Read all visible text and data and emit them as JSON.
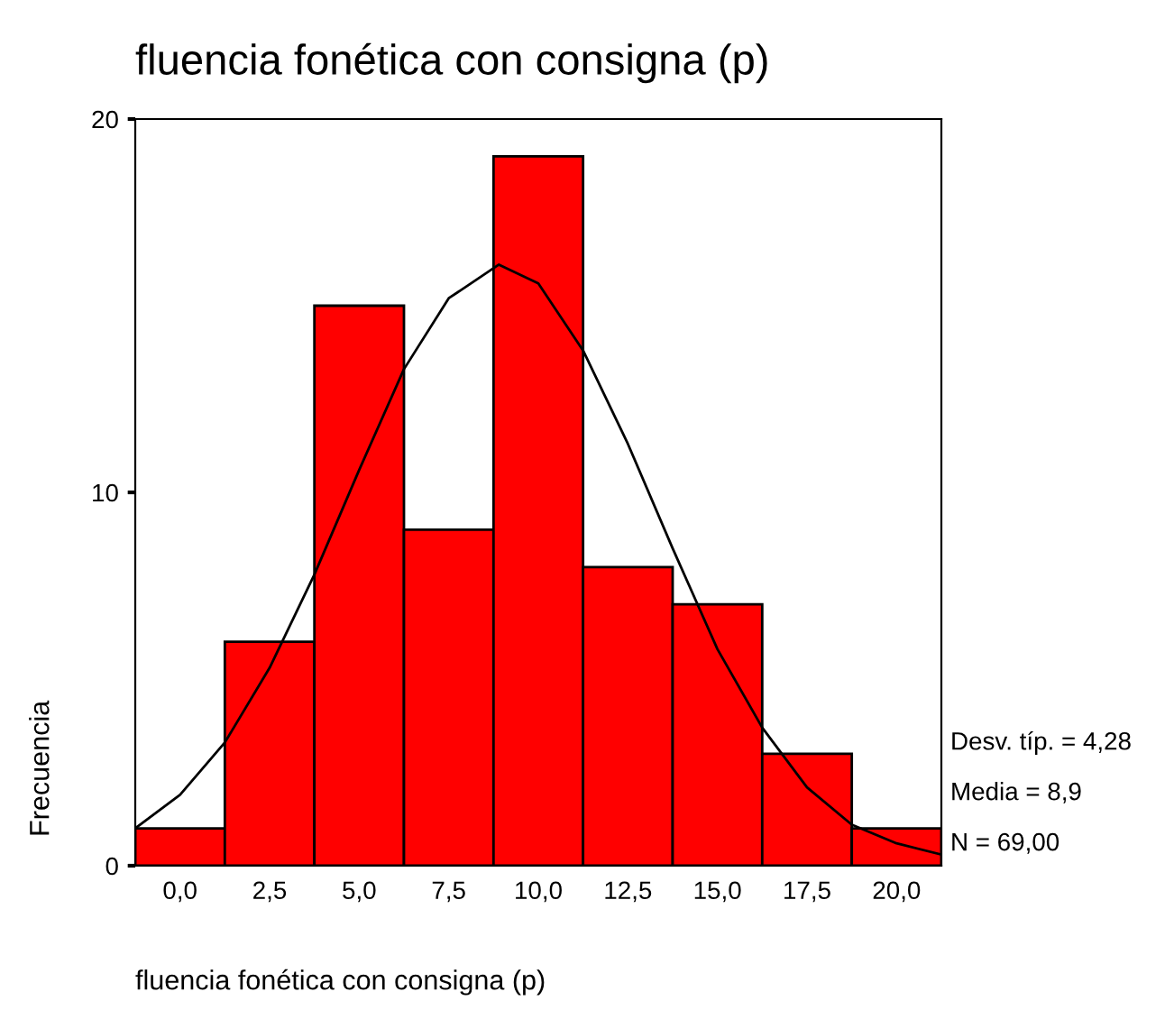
{
  "chart_data": {
    "type": "histogram",
    "title": "fluencia fonética con consigna (p)",
    "xlabel": "fluencia fonética con consigna (p)",
    "ylabel": "Frecuencia",
    "bins": [
      -1.25,
      1.25,
      3.75,
      6.25,
      8.75,
      11.25,
      13.75,
      16.25,
      18.75,
      21.25
    ],
    "values": [
      1,
      6,
      15,
      9,
      19,
      8,
      7,
      3,
      1
    ],
    "color": "#ff0000",
    "series": [
      {
        "type": "line",
        "color": "#000000",
        "x": [
          -1.25,
          0,
          1.25,
          2.5,
          3.75,
          5,
          6.25,
          7.5,
          8.9,
          10,
          11.25,
          12.5,
          13.75,
          15,
          16.25,
          17.5,
          18.75,
          20,
          21.25
        ],
        "values": [
          1.0,
          1.9,
          3.3,
          5.3,
          7.8,
          10.6,
          13.3,
          15.2,
          16.1,
          15.6,
          13.8,
          11.3,
          8.5,
          5.8,
          3.7,
          2.1,
          1.1,
          0.6,
          0.3
        ]
      }
    ],
    "xlim": [
      -1.25,
      21.25
    ],
    "xticks": [
      {
        "value": 0,
        "label": "0,0"
      },
      {
        "value": 2.5,
        "label": "2,5"
      },
      {
        "value": 5,
        "label": "5,0"
      },
      {
        "value": 7.5,
        "label": "7,5"
      },
      {
        "value": 10,
        "label": "10,0"
      },
      {
        "value": 12.5,
        "label": "12,5"
      },
      {
        "value": 15,
        "label": "15,0"
      },
      {
        "value": 17.5,
        "label": "17,5"
      },
      {
        "value": 20,
        "label": "20,0"
      }
    ],
    "ylim": [
      0,
      20
    ],
    "yticks": [
      0,
      10,
      20
    ],
    "grid": false,
    "legend": false,
    "annotations": [
      "Desv. típ. = 4,28",
      "Media = 8,9",
      "N = 69,00"
    ]
  }
}
